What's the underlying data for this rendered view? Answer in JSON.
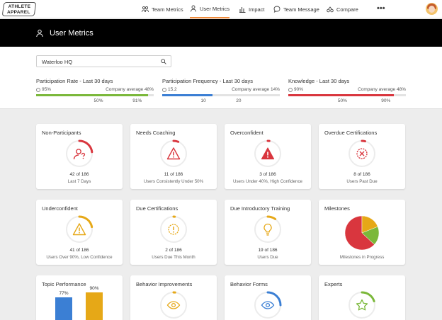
{
  "brand": {
    "line1": "ATHLETE",
    "line2": "APPAREL"
  },
  "nav": {
    "items": [
      {
        "label": "Team Metrics",
        "icon": "team-icon"
      },
      {
        "label": "User Metrics",
        "icon": "user-icon",
        "active": true
      },
      {
        "label": "Impact",
        "icon": "bar-chart-icon"
      },
      {
        "label": "Team Message",
        "icon": "chat-icon"
      },
      {
        "label": "Compare",
        "icon": "compare-icon"
      }
    ],
    "more": "•••"
  },
  "header": {
    "title": "User Metrics"
  },
  "search": {
    "value": "Waterloo HQ"
  },
  "summary": [
    {
      "title": "Participation Rate - Last 30 days",
      "value": "95%",
      "average": "Company average 48%",
      "fill": 0.95,
      "color": "#7bb83a",
      "ticks": [
        "50%",
        "91%"
      ]
    },
    {
      "title": "Participation Frequency - Last 30 days",
      "value": "15.2",
      "average": "Company average 14%",
      "fill": 0.43,
      "color": "#3b7fd4",
      "ticks": [
        "10",
        "20"
      ]
    },
    {
      "title": "Knowledge - Last 30 days",
      "value": "90%",
      "average": "Company average 48%",
      "fill": 0.9,
      "color": "#d9363e",
      "ticks": [
        "50%",
        "90%"
      ]
    }
  ],
  "cards": [
    {
      "title": "Non-Participants",
      "count": "42 of 186",
      "sub": "Last 7 Days",
      "icon": "user-question-icon",
      "color": "#d9363e",
      "progress": 0.23
    },
    {
      "title": "Needs Coaching",
      "count": "11 of 186",
      "sub": "Users Consistently Under 50%",
      "icon": "warning-icon",
      "color": "#d9363e",
      "progress": 0.06
    },
    {
      "title": "Overconfident",
      "count": "3 of 186",
      "sub": "Users Under 40%, High Confidence",
      "icon": "warning-filled-icon",
      "color": "#d9363e",
      "progress": 0.02
    },
    {
      "title": "Overdue Certifications",
      "count": "8 of 186",
      "sub": "Users Past Due",
      "icon": "certificate-x-icon",
      "color": "#d9363e",
      "progress": 0.04
    },
    {
      "title": "Underconfident",
      "count": "41 of 186",
      "sub": "Users Over 90%, Low Confidence",
      "icon": "warning-icon",
      "color": "#e6a817",
      "progress": 0.22
    },
    {
      "title": "Due Certifications",
      "count": "2 of 186",
      "sub": "Users Due This Month",
      "icon": "certificate-alert-icon",
      "color": "#e6a817",
      "progress": 0.01
    },
    {
      "title": "Due Introductory Training",
      "count": "19 of 186",
      "sub": "Users Due",
      "icon": "lightbulb-icon",
      "color": "#e6a817",
      "progress": 0.1
    },
    {
      "title": "Milestones",
      "count": "",
      "sub": "Milestones in Progress",
      "icon": "pie-chart-icon",
      "color": "#7bb83a",
      "progress": 0
    },
    {
      "title": "Topic Performance",
      "count": "",
      "sub": "",
      "icon": "bar-chart-icon",
      "color": "#3b7fd4",
      "progress": 0
    },
    {
      "title": "Behavior Improvements",
      "count": "",
      "sub": "",
      "icon": "eye-icon",
      "color": "#e6a817",
      "progress": 0.02
    },
    {
      "title": "Behavior Forms",
      "count": "",
      "sub": "",
      "icon": "eye-icon",
      "color": "#3b7fd4",
      "progress": 0.25
    },
    {
      "title": "Experts",
      "count": "",
      "sub": "",
      "icon": "star-icon",
      "color": "#7bb83a",
      "progress": 0.2
    }
  ],
  "milestones_pie": [
    {
      "value": 0.63,
      "color": "#d9363e"
    },
    {
      "value": 0.19,
      "color": "#e6a817"
    },
    {
      "value": 0.18,
      "color": "#7bb83a"
    }
  ],
  "topic_performance": {
    "labels": [
      "77%",
      "90%"
    ],
    "values": [
      77,
      90
    ],
    "colors": [
      "#3b7fd4",
      "#e6a817"
    ]
  }
}
